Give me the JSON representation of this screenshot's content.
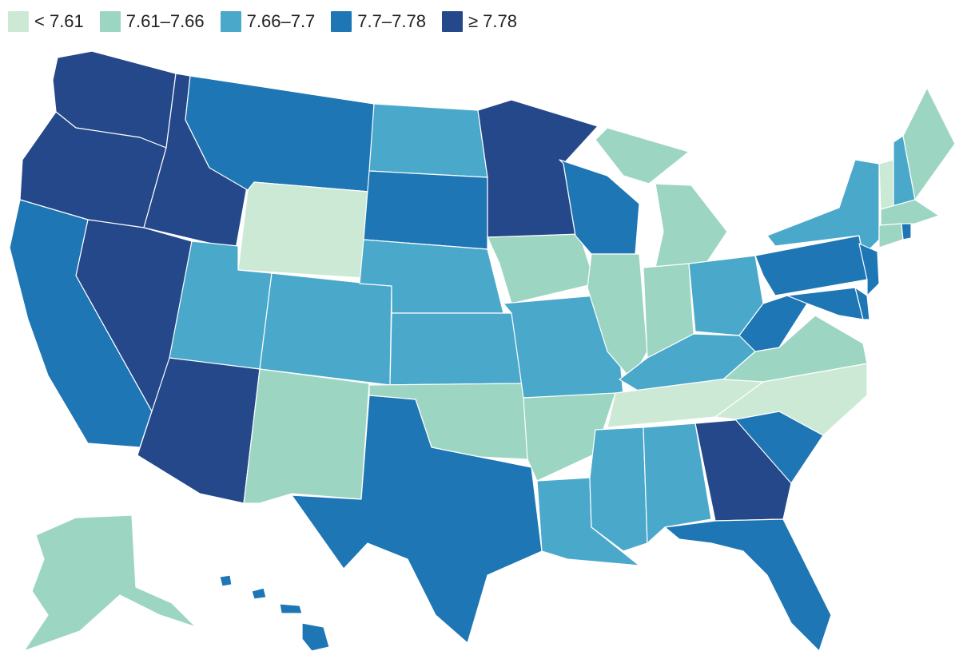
{
  "legend": {
    "items": [
      {
        "label": "< 7.61",
        "color": "#cce9d6"
      },
      {
        "label": "7.61–7.66",
        "color": "#9dd5c3"
      },
      {
        "label": "7.66–7.7",
        "color": "#4aa8cb"
      },
      {
        "label": "7.7–7.78",
        "color": "#1f76b4"
      },
      {
        "label": "≥ 7.78",
        "color": "#25488a"
      }
    ]
  },
  "bins": [
    "< 7.61",
    "7.61–7.66",
    "7.66–7.7",
    "7.7–7.78",
    "≥ 7.78"
  ],
  "states": {
    "WA": 4,
    "OR": 4,
    "ID": 4,
    "NV": 4,
    "AZ": 4,
    "MN": 4,
    "GA": 4,
    "CA": 3,
    "MT": 3,
    "SD": 3,
    "WI": 3,
    "TX": 3,
    "SC": 3,
    "FL": 3,
    "PA": 3,
    "NJ": 3,
    "WV": 3,
    "MD": 3,
    "DE": 3,
    "HI": 3,
    "RI": 3,
    "UT": 2,
    "CO": 2,
    "NE": 2,
    "KS": 2,
    "ND": 2,
    "MO": 2,
    "OH": 2,
    "KY": 2,
    "LA": 2,
    "MS": 2,
    "AL": 2,
    "NY": 2,
    "NH": 2,
    "NM": 1,
    "OK": 1,
    "AR": 1,
    "IA": 1,
    "IL": 1,
    "IN": 1,
    "MI": 1,
    "VA": 1,
    "ME": 1,
    "MA": 1,
    "CT": 1,
    "AK": 1,
    "WY": 0,
    "TN": 0,
    "NC": 0,
    "VT": 0
  }
}
